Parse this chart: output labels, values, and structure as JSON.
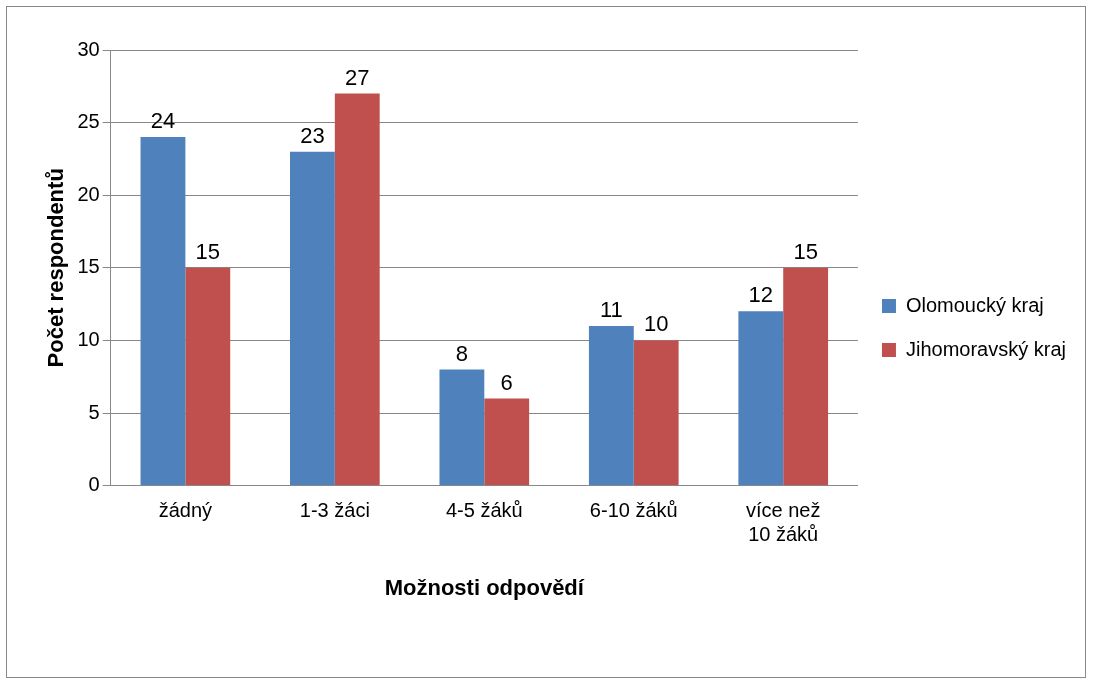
{
  "chart_data": {
    "type": "bar",
    "xlabel": "Možnosti odpovědí",
    "ylabel": "Počet respondentů",
    "categories": [
      "žádný",
      "1-3 žáci",
      "4-5 žáků",
      "6-10 žáků",
      "více než 10 žáků"
    ],
    "series": [
      {
        "name": "Olomoucký kraj",
        "color": "#4f81bd",
        "values": [
          24,
          23,
          8,
          11,
          12
        ]
      },
      {
        "name": "Jihomoravský kraj",
        "color": "#c0504d",
        "values": [
          15,
          27,
          6,
          10,
          15
        ]
      }
    ],
    "ylim": [
      0,
      30
    ],
    "yticks": [
      0,
      5,
      10,
      15,
      20,
      25,
      30
    ],
    "grid": "y",
    "legend": "right",
    "data_labels": true
  }
}
